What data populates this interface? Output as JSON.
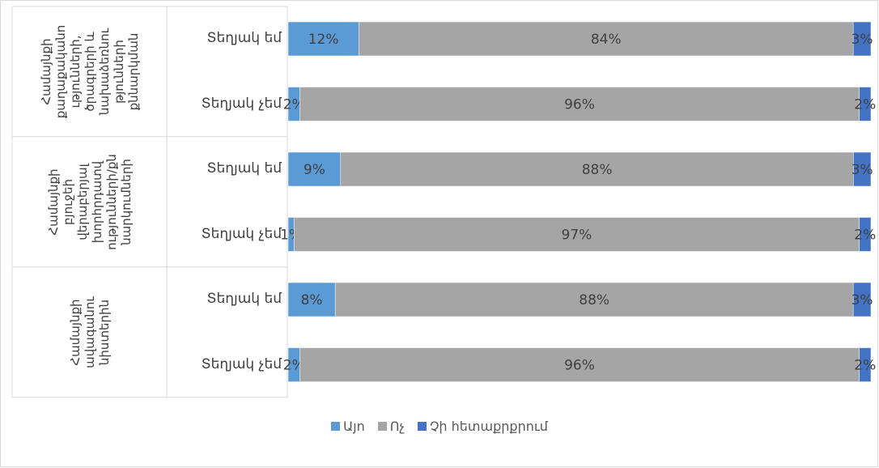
{
  "chart_data": {
    "type": "bar",
    "orientation": "horizontal",
    "stacked": "percent",
    "groups": [
      {
        "label": "Համայնքի\nքաղաքականո\nւթյունների,\nծրագրերի և\nնախաձեռնու\nթյունների\nքննարկման",
        "categories": [
          "Տեղյակ եմ",
          "Տեղյակ չեմ"
        ]
      },
      {
        "label": "Համայնքի\nբյուջեի\nվերաբերյալ\nխորհրդատվ\nությունների/քն\nնարկումների",
        "categories": [
          "Տեղյակ եմ",
          "Տեղյակ չեմ"
        ]
      },
      {
        "label": "Համայնքի\nավագանու\nնիստերին",
        "categories": [
          "Տեղյակ եմ",
          "Տեղյակ չեմ"
        ]
      }
    ],
    "series": [
      {
        "name": "Այո",
        "color": "#5b9bd5",
        "values": [
          12,
          2,
          9,
          1,
          8,
          2
        ],
        "labels": [
          "12%",
          "2%",
          "9%",
          "1%",
          "8%",
          "2%"
        ]
      },
      {
        "name": "Ոչ",
        "color": "#a5a5a5",
        "values": [
          84,
          96,
          88,
          97,
          88,
          96
        ],
        "labels": [
          "84%",
          "96%",
          "88%",
          "97%",
          "88%",
          "96%"
        ]
      },
      {
        "name": "Չի հետաքրքրում",
        "color": "#4472c4",
        "values": [
          3,
          2,
          3,
          2,
          3,
          2
        ],
        "labels": [
          "3%",
          "2%",
          "3%",
          "2%",
          "3%",
          "2%"
        ]
      }
    ],
    "legend_position": "bottom",
    "grid": false
  }
}
